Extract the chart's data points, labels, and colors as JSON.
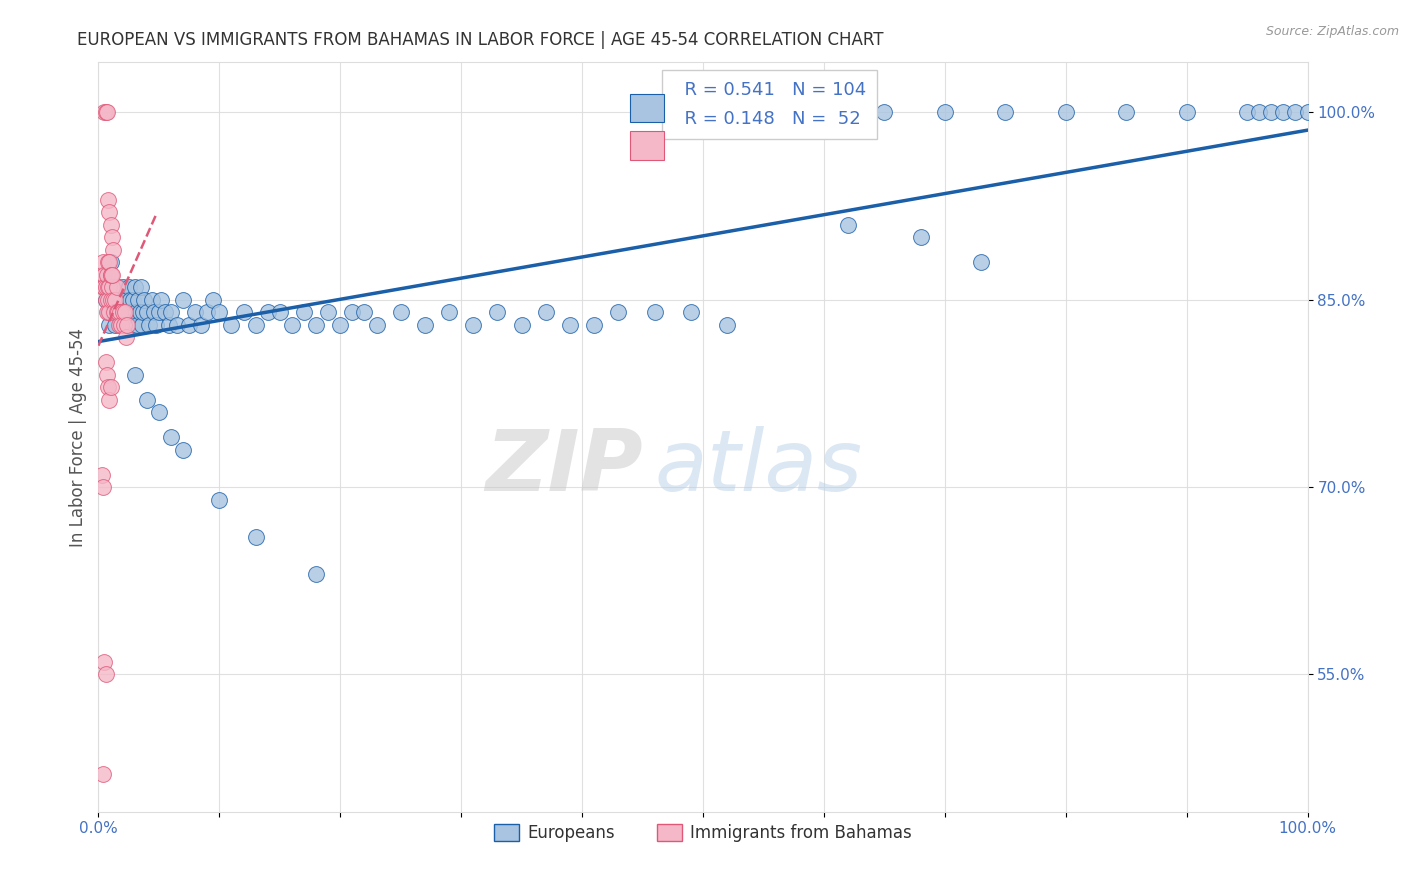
{
  "title": "EUROPEAN VS IMMIGRANTS FROM BAHAMAS IN LABOR FORCE | AGE 45-54 CORRELATION CHART",
  "source": "Source: ZipAtlas.com",
  "ylabel": "In Labor Force | Age 45-54",
  "xlim": [
    0.0,
    1.0
  ],
  "ylim": [
    0.44,
    1.04
  ],
  "yticks": [
    0.55,
    0.7,
    0.85,
    1.0
  ],
  "ytick_labels": [
    "55.0%",
    "70.0%",
    "85.0%",
    "100.0%"
  ],
  "xticks": [
    0.0,
    0.1,
    0.2,
    0.3,
    0.4,
    0.5,
    0.6,
    0.7,
    0.8,
    0.9,
    1.0
  ],
  "xtick_labels": [
    "0.0%",
    "",
    "",
    "",
    "",
    "",
    "",
    "",
    "",
    "",
    "100.0%"
  ],
  "legend_labels": [
    "Europeans",
    "Immigrants from Bahamas"
  ],
  "R_european": 0.541,
  "N_european": 104,
  "R_bahamas": 0.148,
  "N_bahamas": 52,
  "european_color": "#a8c4e0",
  "bahamas_color": "#f4b8c8",
  "trendline_european_color": "#1a5fa8",
  "trendline_bahamas_color": "#e05878",
  "watermark_zip": "ZIP",
  "watermark_atlas": "atlas",
  "background_color": "#ffffff",
  "title_color": "#333333",
  "axis_label_color": "#555555",
  "tick_label_color": "#4472c4",
  "legend_R_color": "#4472c4",
  "grid_color": "#dddddd",
  "european_x": [
    0.005,
    0.006,
    0.007,
    0.008,
    0.009,
    0.01,
    0.01,
    0.011,
    0.012,
    0.013,
    0.014,
    0.015,
    0.015,
    0.016,
    0.017,
    0.018,
    0.019,
    0.02,
    0.021,
    0.022,
    0.023,
    0.024,
    0.025,
    0.026,
    0.027,
    0.028,
    0.029,
    0.03,
    0.031,
    0.032,
    0.033,
    0.034,
    0.035,
    0.036,
    0.037,
    0.038,
    0.04,
    0.042,
    0.044,
    0.046,
    0.048,
    0.05,
    0.052,
    0.055,
    0.058,
    0.06,
    0.065,
    0.07,
    0.075,
    0.08,
    0.085,
    0.09,
    0.095,
    0.1,
    0.11,
    0.12,
    0.13,
    0.14,
    0.15,
    0.16,
    0.17,
    0.18,
    0.19,
    0.2,
    0.21,
    0.22,
    0.23,
    0.25,
    0.27,
    0.29,
    0.31,
    0.33,
    0.35,
    0.37,
    0.39,
    0.41,
    0.43,
    0.46,
    0.49,
    0.52,
    0.03,
    0.04,
    0.05,
    0.06,
    0.07,
    0.1,
    0.13,
    0.18,
    0.6,
    0.65,
    0.7,
    0.75,
    0.8,
    0.85,
    0.9,
    0.95,
    0.96,
    0.97,
    0.98,
    0.99,
    1.0,
    0.62,
    0.68,
    0.73
  ],
  "european_y": [
    0.87,
    0.85,
    0.86,
    0.84,
    0.83,
    0.88,
    0.86,
    0.85,
    0.84,
    0.86,
    0.83,
    0.85,
    0.84,
    0.86,
    0.84,
    0.83,
    0.85,
    0.86,
    0.84,
    0.83,
    0.85,
    0.84,
    0.86,
    0.85,
    0.84,
    0.83,
    0.85,
    0.86,
    0.84,
    0.83,
    0.85,
    0.84,
    0.86,
    0.83,
    0.84,
    0.85,
    0.84,
    0.83,
    0.85,
    0.84,
    0.83,
    0.84,
    0.85,
    0.84,
    0.83,
    0.84,
    0.83,
    0.85,
    0.83,
    0.84,
    0.83,
    0.84,
    0.85,
    0.84,
    0.83,
    0.84,
    0.83,
    0.84,
    0.84,
    0.83,
    0.84,
    0.83,
    0.84,
    0.83,
    0.84,
    0.84,
    0.83,
    0.84,
    0.83,
    0.84,
    0.83,
    0.84,
    0.83,
    0.84,
    0.83,
    0.83,
    0.84,
    0.84,
    0.84,
    0.83,
    0.79,
    0.77,
    0.76,
    0.74,
    0.73,
    0.69,
    0.66,
    0.63,
    1.0,
    1.0,
    1.0,
    1.0,
    1.0,
    1.0,
    1.0,
    1.0,
    1.0,
    1.0,
    1.0,
    1.0,
    1.0,
    0.91,
    0.9,
    0.88
  ],
  "bahamas_x": [
    0.003,
    0.004,
    0.004,
    0.005,
    0.005,
    0.006,
    0.006,
    0.007,
    0.007,
    0.008,
    0.008,
    0.009,
    0.009,
    0.01,
    0.01,
    0.011,
    0.012,
    0.013,
    0.014,
    0.015,
    0.015,
    0.016,
    0.017,
    0.018,
    0.019,
    0.02,
    0.021,
    0.022,
    0.023,
    0.024,
    0.005,
    0.006,
    0.007,
    0.008,
    0.009,
    0.01,
    0.011,
    0.012,
    0.008,
    0.009,
    0.01,
    0.011,
    0.006,
    0.007,
    0.008,
    0.009,
    0.01,
    0.003,
    0.004,
    0.005,
    0.006,
    0.004
  ],
  "bahamas_y": [
    0.87,
    0.88,
    0.86,
    0.87,
    0.86,
    0.85,
    0.86,
    0.87,
    0.84,
    0.86,
    0.85,
    0.86,
    0.84,
    0.87,
    0.85,
    0.86,
    0.85,
    0.84,
    0.85,
    0.84,
    0.86,
    0.84,
    0.83,
    0.84,
    0.83,
    0.84,
    0.83,
    0.84,
    0.82,
    0.83,
    1.0,
    1.0,
    1.0,
    0.93,
    0.92,
    0.91,
    0.9,
    0.89,
    0.88,
    0.88,
    0.87,
    0.87,
    0.8,
    0.79,
    0.78,
    0.77,
    0.78,
    0.71,
    0.7,
    0.56,
    0.55,
    0.47
  ]
}
